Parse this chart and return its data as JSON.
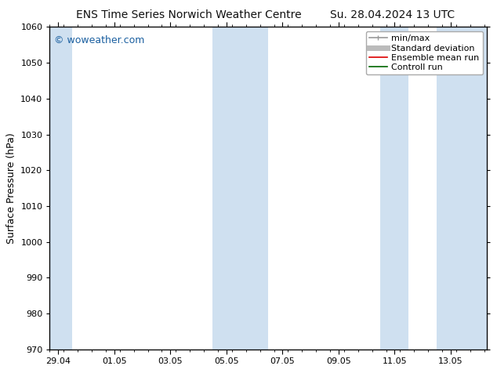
{
  "title_left": "ENS Time Series Norwich Weather Centre",
  "title_right": "Su. 28.04.2024 13 UTC",
  "ylabel": "Surface Pressure (hPa)",
  "ylim": [
    970,
    1060
  ],
  "yticks": [
    970,
    980,
    990,
    1000,
    1010,
    1020,
    1030,
    1040,
    1050,
    1060
  ],
  "xtick_labels": [
    "29.04",
    "01.05",
    "03.05",
    "05.05",
    "07.05",
    "09.05",
    "11.05",
    "13.05"
  ],
  "xtick_positions": [
    0,
    2,
    4,
    6,
    8,
    10,
    12,
    14
  ],
  "xlim": [
    -0.3,
    15.3
  ],
  "watermark": "© woweather.com",
  "watermark_color": "#1a5fa0",
  "background_color": "#ffffff",
  "plot_bg_color": "#ffffff",
  "shaded_bands": [
    {
      "x_start": -0.3,
      "x_end": 0.5,
      "color": "#cfe0f0"
    },
    {
      "x_start": 5.5,
      "x_end": 6.5,
      "color": "#cfe0f0"
    },
    {
      "x_start": 6.5,
      "x_end": 7.5,
      "color": "#cfe0f0"
    },
    {
      "x_start": 11.5,
      "x_end": 12.5,
      "color": "#cfe0f0"
    },
    {
      "x_start": 13.5,
      "x_end": 15.3,
      "color": "#cfe0f0"
    }
  ],
  "legend_entries": [
    {
      "label": "min/max",
      "color": "#999999",
      "lw": 1.2
    },
    {
      "label": "Standard deviation",
      "color": "#bbbbbb",
      "lw": 5
    },
    {
      "label": "Ensemble mean run",
      "color": "#dd0000",
      "lw": 1.2
    },
    {
      "label": "Controll run",
      "color": "#006600",
      "lw": 1.2
    }
  ],
  "font_size_title": 10,
  "font_size_axis": 9,
  "font_size_ticks": 8,
  "font_size_legend": 8,
  "font_size_watermark": 9
}
